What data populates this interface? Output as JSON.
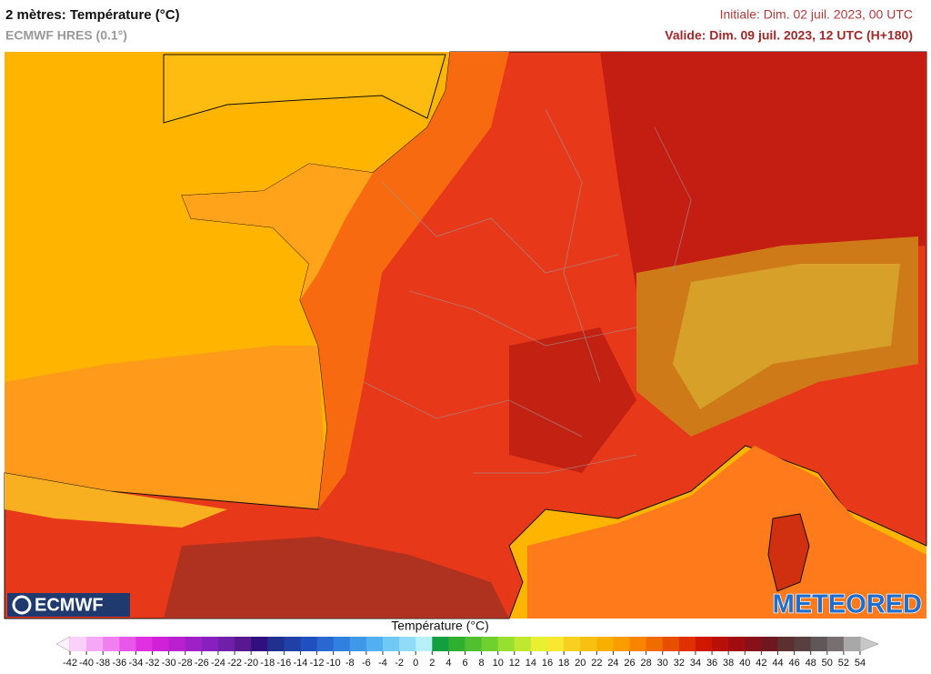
{
  "header": {
    "title": "2 mètres: Température (°C)",
    "model": "ECMWF HRES (0.1°)",
    "initial": "Initiale: Dim. 02 juil. 2023, 00 UTC",
    "valid": "Valide: Dim. 09 juil. 2023, 12 UTC (H+180)"
  },
  "legend": {
    "title": "Température (°C)",
    "ticks": [
      -42,
      -40,
      -38,
      -36,
      -34,
      -32,
      -30,
      -28,
      -26,
      -24,
      -22,
      -20,
      -18,
      -16,
      -14,
      -12,
      -10,
      -8,
      -6,
      -4,
      -2,
      0,
      2,
      4,
      6,
      8,
      10,
      12,
      14,
      16,
      18,
      20,
      22,
      24,
      26,
      28,
      30,
      32,
      34,
      36,
      38,
      40,
      42,
      44,
      46,
      48,
      50,
      52,
      54
    ],
    "colors": [
      "#fbd0fb",
      "#f6a8f6",
      "#f080f0",
      "#e858e8",
      "#e030e0",
      "#d020d8",
      "#b820d0",
      "#a020c8",
      "#8820c0",
      "#7020a8",
      "#581890",
      "#301080",
      "#203090",
      "#2040a8",
      "#2050c0",
      "#2868d0",
      "#3080e0",
      "#4098e8",
      "#50b0f0",
      "#70c8f4",
      "#90dcf8",
      "#b8f0fa",
      "#10a040",
      "#30b030",
      "#50c030",
      "#70d030",
      "#98e030",
      "#c0e830",
      "#e8f030",
      "#f8e830",
      "#f8d020",
      "#f8c010",
      "#f8b000",
      "#f89c00",
      "#f88400",
      "#f06c00",
      "#e85000",
      "#e03000",
      "#d01800",
      "#b81008",
      "#a00c10",
      "#881018",
      "#701820",
      "#5c3030",
      "#584040",
      "#605858",
      "#787070",
      "#a8a8a8"
    ]
  },
  "logos": {
    "left": "ECMWF",
    "right": "METEORED"
  }
}
